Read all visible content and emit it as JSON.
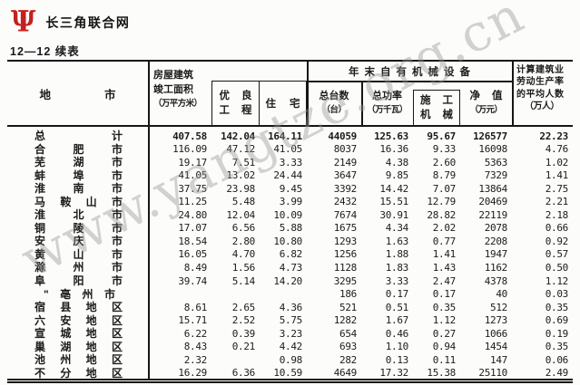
{
  "brand": {
    "logo_glyph": "Ψ",
    "logo_text": "长三角联合网"
  },
  "caption": "12—12  续表",
  "watermark": "www.yangtze.org.cn",
  "table": {
    "header": {
      "region": "地市",
      "floor_area_line1": "房屋建筑",
      "floor_area_line2": "竣工面积",
      "floor_area_line3": "（万平方米）",
      "excellent_line1": "优良",
      "excellent_line2": "工程",
      "residence": "住宅",
      "machinery_group": "年末自有机械设备",
      "units_line1": "总台数",
      "units_line2": "（台）",
      "power_line1": "总功率",
      "power_line2": "（万千瓦）",
      "construction_line1": "施工",
      "construction_line2": "机械",
      "net_line1": "净值",
      "net_line2": "（万元）",
      "avg_line1": "计算建筑业",
      "avg_line2": "劳动生产率",
      "avg_line3": "的平均人数",
      "avg_line4": "（万人）"
    },
    "rows": [
      {
        "name": "总计",
        "bold": true,
        "values": [
          "407.58",
          "142.04",
          "164.11",
          "44059",
          "125.63",
          "95.67",
          "126577",
          "22.23"
        ]
      },
      {
        "name": "合肥市",
        "values": [
          "116.09",
          "47.12",
          "41.05",
          "8037",
          "16.36",
          "9.33",
          "16098",
          "4.76"
        ]
      },
      {
        "name": "芜湖市",
        "values": [
          "19.17",
          "7.51",
          "3.33",
          "2149",
          "4.38",
          "2.60",
          "5363",
          "1.02"
        ]
      },
      {
        "name": "蚌埠市",
        "values": [
          "41.05",
          "13.02",
          "24.44",
          "3647",
          "9.85",
          "8.79",
          "7329",
          "1.41"
        ]
      },
      {
        "name": "淮南市",
        "values": [
          "37.75",
          "23.98",
          "9.45",
          "3392",
          "14.42",
          "7.07",
          "13864",
          "2.75"
        ]
      },
      {
        "name": "马鞍山市",
        "values": [
          "11.25",
          "5.48",
          "3.99",
          "2432",
          "15.51",
          "12.79",
          "20469",
          "2.21"
        ]
      },
      {
        "name": "淮北市",
        "values": [
          "24.80",
          "12.04",
          "10.09",
          "7674",
          "30.91",
          "28.82",
          "22119",
          "2.18"
        ]
      },
      {
        "name": "铜陵市",
        "values": [
          "17.07",
          "6.56",
          "5.88",
          "1675",
          "4.34",
          "2.02",
          "2078",
          "0.66"
        ]
      },
      {
        "name": "安庆市",
        "values": [
          "18.54",
          "2.80",
          "10.80",
          "1293",
          "1.63",
          "0.77",
          "2208",
          "0.92"
        ]
      },
      {
        "name": "黄山市",
        "values": [
          "16.05",
          "4.70",
          "6.82",
          "1256",
          "1.88",
          "1.41",
          "1947",
          "0.57"
        ]
      },
      {
        "name": "滁州市",
        "values": [
          "8.49",
          "1.56",
          "4.73",
          "1128",
          "1.83",
          "1.43",
          "1162",
          "0.50"
        ]
      },
      {
        "name": "阜阳市",
        "values": [
          "39.74",
          "5.14",
          "14.20",
          "3295",
          "3.33",
          "2.47",
          "4378",
          "1.12"
        ]
      },
      {
        "name": "\"亳州市",
        "indent": true,
        "values": [
          "",
          "",
          "",
          "186",
          "0.17",
          "0.17",
          "40",
          "0.03"
        ]
      },
      {
        "name": "宿县地区",
        "values": [
          "8.61",
          "2.65",
          "4.36",
          "521",
          "0.51",
          "0.35",
          "512",
          "0.35"
        ]
      },
      {
        "name": "六安地区",
        "values": [
          "15.71",
          "2.52",
          "5.75",
          "1282",
          "1.67",
          "1.12",
          "1273",
          "0.69"
        ]
      },
      {
        "name": "宣城地区",
        "values": [
          "6.22",
          "0.39",
          "3.23",
          "654",
          "0.46",
          "0.27",
          "1066",
          "0.19"
        ]
      },
      {
        "name": "巢湖地区",
        "values": [
          "8.43",
          "0.21",
          "4.42",
          "693",
          "1.10",
          "0.94",
          "1454",
          "0.35"
        ]
      },
      {
        "name": "池州地区",
        "values": [
          "2.32",
          "",
          "0.98",
          "282",
          "0.13",
          "0.11",
          "147",
          "0.06"
        ]
      },
      {
        "name": "不分地区",
        "values": [
          "16.29",
          "6.36",
          "10.59",
          "4649",
          "17.32",
          "15.38",
          "25110",
          "2.49"
        ]
      }
    ]
  }
}
